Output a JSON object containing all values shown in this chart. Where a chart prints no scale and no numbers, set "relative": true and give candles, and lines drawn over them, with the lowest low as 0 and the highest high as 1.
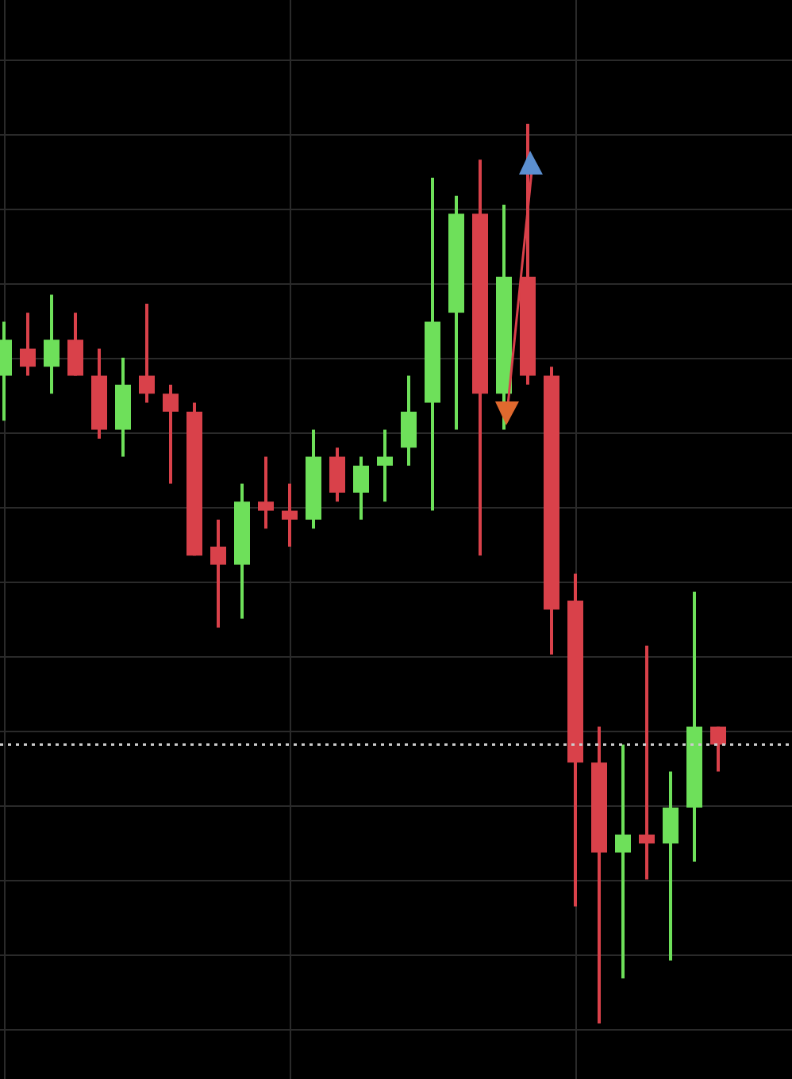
{
  "chart_data": {
    "type": "candlestick",
    "relative": true,
    "grid": true,
    "categories": [
      null,
      null,
      null,
      null,
      null,
      null,
      null,
      null,
      null,
      null,
      null,
      null,
      null,
      null,
      null,
      null,
      null,
      null,
      null,
      null,
      null,
      null,
      null,
      null,
      null,
      null,
      null,
      null,
      null,
      null,
      null
    ],
    "ohlc": [
      [
        0.72,
        0.78,
        0.67,
        0.76
      ],
      [
        0.75,
        0.79,
        0.72,
        0.73
      ],
      [
        0.73,
        0.81,
        0.7,
        0.76
      ],
      [
        0.76,
        0.79,
        0.72,
        0.72
      ],
      [
        0.72,
        0.75,
        0.65,
        0.66
      ],
      [
        0.66,
        0.74,
        0.63,
        0.71
      ],
      [
        0.72,
        0.8,
        0.69,
        0.7
      ],
      [
        0.7,
        0.71,
        0.6,
        0.68
      ],
      [
        0.68,
        0.69,
        0.52,
        0.52
      ],
      [
        0.53,
        0.56,
        0.44,
        0.51
      ],
      [
        0.51,
        0.6,
        0.45,
        0.58
      ],
      [
        0.58,
        0.63,
        0.55,
        0.57
      ],
      [
        0.57,
        0.6,
        0.53,
        0.56
      ],
      [
        0.56,
        0.66,
        0.55,
        0.63
      ],
      [
        0.63,
        0.64,
        0.58,
        0.59
      ],
      [
        0.59,
        0.63,
        0.56,
        0.62
      ],
      [
        0.62,
        0.66,
        0.58,
        0.63
      ],
      [
        0.64,
        0.72,
        0.62,
        0.68
      ],
      [
        0.69,
        0.94,
        0.57,
        0.78
      ],
      [
        0.79,
        0.92,
        0.66,
        0.9
      ],
      [
        0.9,
        0.96,
        0.52,
        0.7
      ],
      [
        0.7,
        0.91,
        0.66,
        0.83
      ],
      [
        0.83,
        1,
        0.71,
        0.72
      ],
      [
        0.72,
        0.73,
        0.41,
        0.46
      ],
      [
        0.47,
        0.5,
        0.13,
        0.29
      ],
      [
        0.29,
        0.33,
        0,
        0.19
      ],
      [
        0.19,
        0.31,
        0.05,
        0.21
      ],
      [
        0.21,
        0.42,
        0.16,
        0.2
      ],
      [
        0.2,
        0.28,
        0.07,
        0.24
      ],
      [
        0.24,
        0.48,
        0.18,
        0.33
      ],
      [
        0.33,
        0.33,
        0.28,
        0.31
      ]
    ],
    "colors": [
      "#6ee05a",
      "#d9414a",
      "#6ee05a",
      "#d9414a",
      "#d9414a",
      "#6ee05a",
      "#d9414a",
      "#d9414a",
      "#d9414a",
      "#d9414a",
      "#6ee05a",
      "#d9414a",
      "#d9414a",
      "#6ee05a",
      "#d9414a",
      "#6ee05a",
      "#6ee05a",
      "#6ee05a",
      "#6ee05a",
      "#6ee05a",
      "#d9414a",
      "#6ee05a",
      "#d9414a",
      "#d9414a",
      "#d9414a",
      "#d9414a",
      "#6ee05a",
      "#d9414a",
      "#6ee05a",
      "#6ee05a",
      "#d9414a"
    ],
    "ref_lines": [
      {
        "axis": "y",
        "value": 0.31,
        "color": "#cccccc",
        "line_style": "dotted"
      }
    ]
  }
}
